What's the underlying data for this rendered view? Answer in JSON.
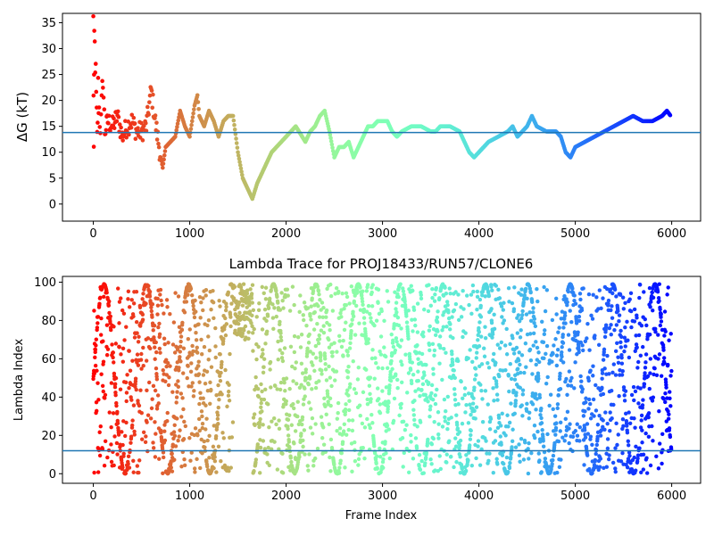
{
  "chart_data": [
    {
      "type": "scatter",
      "title": "",
      "xlabel": "",
      "ylabel": "ΔG (kT)",
      "xlim": [
        -320,
        6300
      ],
      "ylim": [
        -3.3,
        36.8
      ],
      "xticks": [
        0,
        1000,
        2000,
        3000,
        4000,
        5000,
        6000
      ],
      "yticks": [
        0,
        5,
        10,
        15,
        20,
        25,
        30,
        35
      ],
      "color_map": "rainbow (red at frame 0 → violet at frame 6000)",
      "hline": {
        "y": 13.8,
        "color": "#1f77b4"
      },
      "series": [
        {
          "x": [
            0,
            5,
            10,
            20,
            30,
            40,
            50,
            60,
            80,
            100,
            120,
            150,
            200,
            250,
            300,
            350,
            400,
            450,
            500,
            550,
            600,
            650,
            700,
            720,
            750,
            800,
            850,
            900,
            950,
            1000,
            1050,
            1080,
            1100,
            1150,
            1200,
            1250,
            1300,
            1350,
            1400,
            1450,
            1500,
            1550,
            1600,
            1650,
            1700,
            1750,
            1800,
            1850,
            1900,
            1950,
            2000,
            2100,
            2200,
            2250,
            2300,
            2350,
            2400,
            2450,
            2500,
            2550,
            2600,
            2650,
            2700,
            2750,
            2800,
            2850,
            2900,
            2950,
            3000,
            3050,
            3100,
            3150,
            3200,
            3300,
            3400,
            3500,
            3550,
            3600,
            3700,
            3800,
            3850,
            3900,
            3950,
            4000,
            4100,
            4200,
            4300,
            4350,
            4400,
            4500,
            4550,
            4600,
            4700,
            4800,
            4850,
            4900,
            4950,
            5000,
            5100,
            5200,
            5300,
            5400,
            5500,
            5600,
            5700,
            5800,
            5900,
            5950,
            5990
          ],
          "y": [
            35,
            10,
            32,
            28,
            20,
            12,
            22,
            18,
            15,
            24,
            14,
            16,
            15,
            17,
            13,
            15,
            16,
            14,
            14,
            15,
            22,
            15,
            9,
            7,
            11,
            12,
            13,
            18,
            15,
            13,
            19,
            21,
            17,
            15,
            18,
            16,
            13,
            16,
            17,
            17,
            10,
            5,
            3,
            1,
            4,
            6,
            8,
            10,
            11,
            12,
            13,
            15,
            12,
            14,
            15,
            17,
            18,
            14,
            9,
            11,
            11,
            12,
            9,
            11,
            13,
            15,
            15,
            16,
            16,
            16,
            14,
            13,
            14,
            15,
            15,
            14,
            14,
            15,
            15,
            14,
            12,
            10,
            9,
            10,
            12,
            13,
            14,
            15,
            13,
            15,
            17,
            15,
            14,
            14,
            13,
            10,
            9,
            11,
            12,
            13,
            14,
            15,
            16,
            17,
            16,
            16,
            17,
            18,
            17
          ]
        }
      ]
    },
    {
      "type": "scatter",
      "title": "Lambda Trace for PROJ18433/RUN57/CLONE6",
      "xlabel": "Frame Index",
      "ylabel": "Lambda Index",
      "xlim": [
        -320,
        6300
      ],
      "ylim": [
        -5,
        103
      ],
      "xticks": [
        0,
        1000,
        2000,
        3000,
        4000,
        5000,
        6000
      ],
      "yticks": [
        0,
        20,
        40,
        60,
        80,
        100
      ],
      "color_map": "rainbow (red at frame 0 → violet at frame 6000)",
      "hline": {
        "y": 12,
        "color": "#1f77b4"
      },
      "series": [
        {
          "x_range": [
            0,
            6000
          ],
          "y_range": [
            0,
            99
          ],
          "point_count": 3000,
          "note_structure": "dense lambda sampling; early frames spread 0-99, frames ~1450-1650 concentrated 70-99, later frames alternate in vertical bands"
        }
      ]
    }
  ]
}
